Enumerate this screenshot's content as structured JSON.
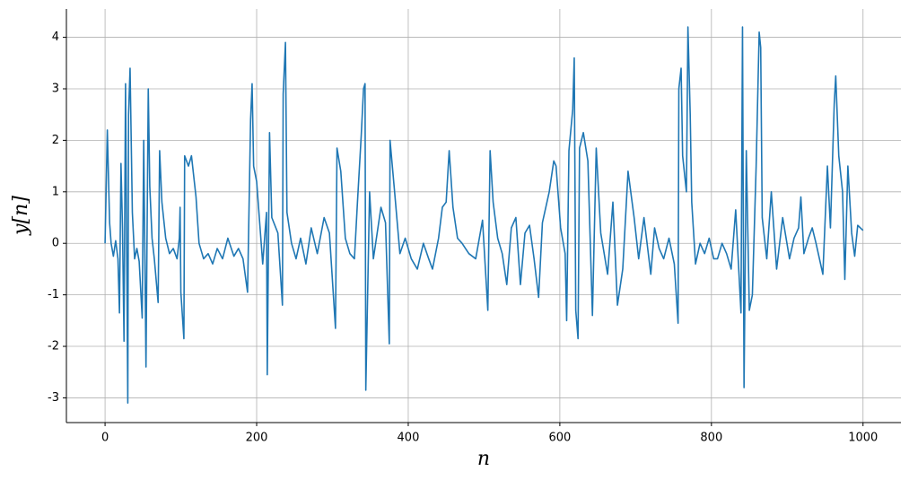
{
  "chart_data": {
    "type": "line",
    "xlabel": "n",
    "ylabel": "y[n]",
    "grid": true,
    "xlim": [
      -51,
      1050
    ],
    "ylim": [
      -3.48,
      4.55
    ],
    "xticks": [
      0,
      200,
      400,
      600,
      800,
      1000
    ],
    "yticks": [
      -3,
      -2,
      -1,
      0,
      1,
      2,
      3,
      4
    ],
    "x": [
      0,
      3,
      6,
      8,
      11,
      14,
      17,
      19,
      21,
      23,
      25,
      27,
      30,
      31,
      33,
      36,
      39,
      42,
      45,
      49,
      51,
      54,
      57,
      59,
      62,
      65,
      70,
      72,
      75,
      80,
      85,
      90,
      95,
      98,
      99,
      100,
      104,
      105,
      110,
      114,
      120,
      124,
      130,
      136,
      142,
      148,
      155,
      162,
      170,
      176,
      182,
      188,
      192,
      194,
      196,
      200,
      205,
      208,
      213,
      214,
      217,
      220,
      228,
      234,
      235,
      238,
      240,
      246,
      252,
      258,
      265,
      272,
      280,
      289,
      296,
      304,
      306,
      311,
      317,
      323,
      329,
      333,
      338,
      341,
      343,
      344,
      349,
      354,
      364,
      370,
      375,
      376,
      382,
      389,
      396,
      404,
      412,
      420,
      427,
      432,
      440,
      445,
      450,
      454,
      459,
      465,
      471,
      480,
      489,
      498,
      505,
      508,
      512,
      518,
      524,
      530,
      536,
      542,
      548,
      554,
      560,
      566,
      572,
      577,
      586,
      592,
      595,
      601,
      607,
      609,
      612,
      617,
      619,
      621,
      624,
      626,
      631,
      637,
      643,
      648,
      654,
      663,
      670,
      676,
      683,
      690,
      698,
      704,
      711,
      720,
      725,
      731,
      737,
      744,
      751,
      756,
      757,
      760,
      762,
      767,
      769,
      772,
      774,
      779,
      785,
      791,
      797,
      803,
      808,
      814,
      820,
      826,
      832,
      839,
      841,
      843,
      846,
      850,
      854,
      859,
      863,
      865,
      867,
      873,
      879,
      886,
      894,
      903,
      909,
      915,
      918,
      922,
      928,
      933,
      938,
      947,
      953,
      957,
      962,
      964,
      968,
      973,
      976,
      980,
      985,
      989,
      993,
      1000
    ],
    "series": [
      {
        "color": "#1f77b4",
        "values": [
          0,
          2.2,
          0.4,
          0,
          -0.25,
          0.05,
          -0.3,
          -1.35,
          1.55,
          0.3,
          -1.9,
          3.1,
          -3.1,
          2.5,
          3.4,
          0.6,
          -0.3,
          -0.1,
          -0.35,
          -1.45,
          2.0,
          -2.4,
          3.0,
          1.1,
          0.1,
          -0.3,
          -1.15,
          1.8,
          0.8,
          0.1,
          -0.2,
          -0.1,
          -0.3,
          0.1,
          0.7,
          -0.95,
          -1.85,
          1.7,
          1.5,
          1.7,
          0.9,
          0.0,
          -0.3,
          -0.2,
          -0.4,
          -0.1,
          -0.3,
          0.1,
          -0.25,
          -0.1,
          -0.3,
          -0.95,
          2.4,
          3.1,
          1.5,
          1.2,
          0.2,
          -0.4,
          0.6,
          -2.55,
          2.15,
          0.5,
          0.2,
          -1.2,
          2.9,
          3.9,
          0.6,
          0.0,
          -0.3,
          0.1,
          -0.4,
          0.3,
          -0.2,
          0.5,
          0.2,
          -1.65,
          1.85,
          1.4,
          0.1,
          -0.2,
          -0.3,
          0.8,
          2.1,
          3.0,
          3.1,
          -2.85,
          1.0,
          -0.3,
          0.7,
          0.4,
          -1.95,
          2.0,
          1.0,
          -0.2,
          0.1,
          -0.3,
          -0.5,
          0.0,
          -0.3,
          -0.5,
          0.1,
          0.7,
          0.8,
          1.8,
          0.7,
          0.1,
          0.0,
          -0.2,
          -0.3,
          0.45,
          -1.3,
          1.8,
          0.8,
          0.1,
          -0.2,
          -0.8,
          0.3,
          0.5,
          -0.8,
          0.2,
          0.35,
          -0.3,
          -1.05,
          0.4,
          1.0,
          1.6,
          1.5,
          0.3,
          -0.2,
          -1.5,
          1.8,
          2.6,
          3.6,
          -1.3,
          -1.85,
          1.85,
          2.15,
          1.6,
          -1.4,
          1.85,
          0.2,
          -0.6,
          0.8,
          -1.2,
          -0.5,
          1.4,
          0.5,
          -0.3,
          0.5,
          -0.6,
          0.3,
          -0.1,
          -0.3,
          0.1,
          -0.4,
          -1.55,
          3.0,
          3.4,
          1.7,
          1.0,
          4.2,
          2.5,
          0.8,
          -0.4,
          0.0,
          -0.2,
          0.1,
          -0.3,
          -0.3,
          0.0,
          -0.2,
          -0.5,
          0.65,
          -1.35,
          4.2,
          -2.8,
          1.8,
          -1.3,
          -1.0,
          1.5,
          4.1,
          3.8,
          0.5,
          -0.3,
          1.0,
          -0.5,
          0.5,
          -0.3,
          0.1,
          0.3,
          0.9,
          -0.2,
          0.1,
          0.3,
          0.0,
          -0.6,
          1.5,
          0.3,
          2.7,
          3.25,
          1.7,
          1.0,
          -0.7,
          1.5,
          0.2,
          -0.25,
          0.35,
          0.25
        ]
      }
    ]
  }
}
